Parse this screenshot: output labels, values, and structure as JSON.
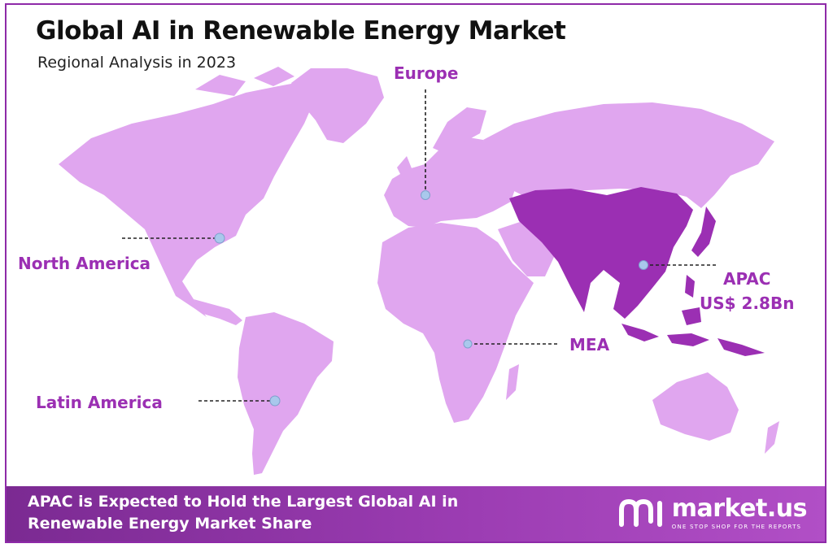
{
  "header": {
    "title": "Global AI in Renewable Energy Market",
    "subtitle": "Regional Analysis in 2023"
  },
  "regions": {
    "europe": "Europe",
    "north_america": "North America",
    "apac": "APAC",
    "apac_value": "US$ 2.8Bn",
    "mea": "MEA",
    "latin_america": "Latin America"
  },
  "highlighted_region": "APAC",
  "footer": {
    "line1": "APAC is Expected to Hold the Largest Global AI in",
    "line2": "Renewable Energy Market Share"
  },
  "logo": {
    "name": "market.us",
    "tagline": "ONE STOP SHOP FOR THE REPORTS"
  },
  "colors": {
    "land": "#e0a6ef",
    "highlight": "#9b2fb3",
    "label": "#9b2fb3",
    "footer": "#8e34a8",
    "marker": "#a9c8ec"
  }
}
